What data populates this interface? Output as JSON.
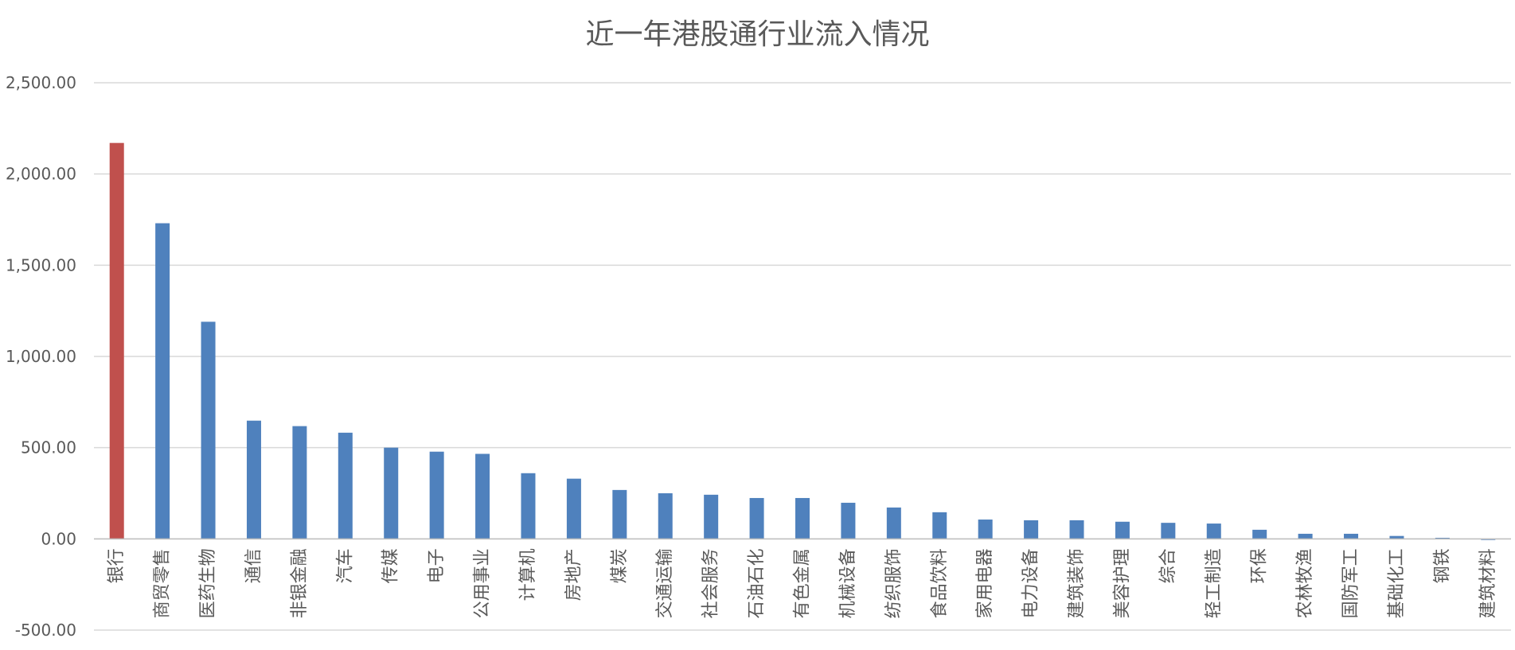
{
  "chart_data": {
    "type": "bar",
    "title": "近一年港股通行业流入情况",
    "xlabel": "",
    "ylabel": "",
    "ylim": [
      -500,
      2500
    ],
    "yticks": [
      "-500.00",
      "0.00",
      "500.00",
      "1,000.00",
      "1,500.00",
      "2,000.00",
      "2,500.00"
    ],
    "ytick_values": [
      -500,
      0,
      500,
      1000,
      1500,
      2000,
      2500
    ],
    "grid": true,
    "categories": [
      "银行",
      "商贸零售",
      "医药生物",
      "通信",
      "非银金融",
      "汽车",
      "传媒",
      "电子",
      "公用事业",
      "计算机",
      "房地产",
      "煤炭",
      "交通运输",
      "社会服务",
      "石油石化",
      "有色金属",
      "机械设备",
      "纺织服饰",
      "食品饮料",
      "家用电器",
      "电力设备",
      "建筑装饰",
      "美容护理",
      "综合",
      "轻工制造",
      "环保",
      "农林牧渔",
      "国防军工",
      "基础化工",
      "钢铁",
      "建筑材料"
    ],
    "values": [
      2170,
      1730,
      1190,
      648,
      618,
      582,
      500,
      478,
      466,
      360,
      330,
      268,
      250,
      242,
      224,
      224,
      198,
      172,
      146,
      106,
      102,
      102,
      94,
      88,
      84,
      50,
      28,
      28,
      16,
      6,
      -6
    ],
    "colors": {
      "highlight": "#c0504d",
      "default": "#4f81bd"
    },
    "highlight_index": 0
  }
}
